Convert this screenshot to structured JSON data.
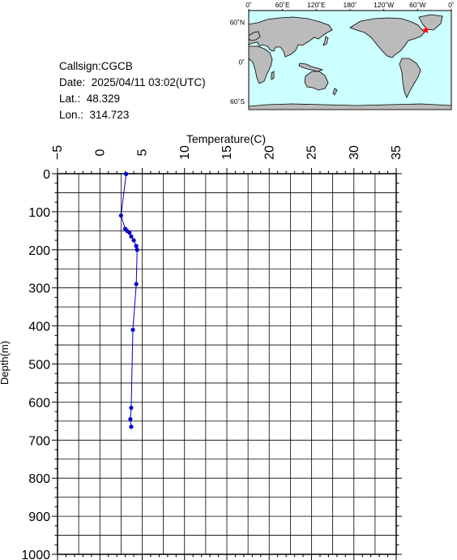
{
  "info": {
    "callsign": "Callsign:CGCB",
    "date": "Date:  2025/04/11 03:02(UTC)",
    "lat": "Lat.:  48.329",
    "lon": "Lon.:  314.723"
  },
  "map": {
    "top_ticks": [
      "0˚",
      "60˚E",
      "120˚E",
      "180˚",
      "120˚W",
      "60˚W",
      "0˚"
    ],
    "left_ticks": [
      "60˚N",
      "0˚",
      "60˚S"
    ],
    "ocean_color": "#ccffff",
    "land_color": "#bbbbbb",
    "marker": {
      "lon": 314.723,
      "lat": 48.329,
      "color": "#ff0000",
      "symbol": "star"
    }
  },
  "chart_data": {
    "type": "line",
    "xlabel": "Temperature(C)",
    "ylabel": "Depth(m)",
    "xlim": [
      -5,
      35
    ],
    "ylim": [
      0,
      1000
    ],
    "y_inverted": true,
    "x_axis_position": "top",
    "xticks": [
      -5,
      0,
      5,
      10,
      15,
      20,
      25,
      30,
      35
    ],
    "yticks": [
      0,
      100,
      200,
      300,
      400,
      500,
      600,
      700,
      800,
      900,
      1000
    ],
    "grid": true,
    "series": [
      {
        "color": "#0000cc",
        "points": [
          {
            "t": 3.1,
            "d": 1
          },
          {
            "t": 2.5,
            "d": 110
          },
          {
            "t": 3.0,
            "d": 145
          },
          {
            "t": 3.2,
            "d": 150
          },
          {
            "t": 3.5,
            "d": 155
          },
          {
            "t": 3.7,
            "d": 165
          },
          {
            "t": 4.0,
            "d": 175
          },
          {
            "t": 4.3,
            "d": 190
          },
          {
            "t": 4.4,
            "d": 200
          },
          {
            "t": 4.3,
            "d": 290
          },
          {
            "t": 3.9,
            "d": 410
          },
          {
            "t": 3.7,
            "d": 615
          },
          {
            "t": 3.6,
            "d": 645
          },
          {
            "t": 3.7,
            "d": 665
          }
        ]
      }
    ]
  }
}
